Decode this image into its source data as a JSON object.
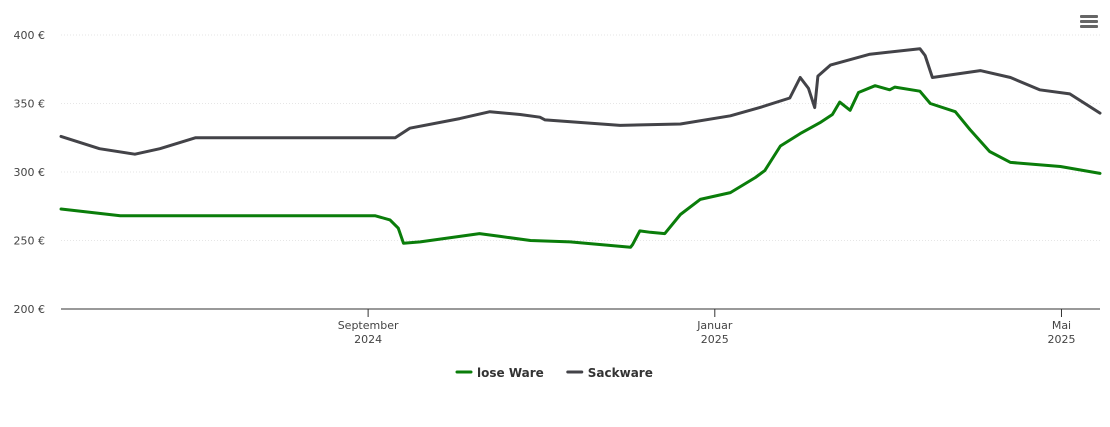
{
  "chart_data": {
    "type": "line",
    "xlim": [
      2024.372,
      2025.37
    ],
    "xticks": [
      {
        "value": 2024.667,
        "label": "September 2024"
      },
      {
        "value": 2025.0,
        "label": "Januar 2025"
      },
      {
        "value": 2025.333,
        "label": "Mai 2025"
      }
    ],
    "ylim": [
      200,
      400
    ],
    "yticks": [
      {
        "value": 200,
        "label": "200 €"
      },
      {
        "value": 250,
        "label": "250 €"
      },
      {
        "value": 300,
        "label": "300 €"
      },
      {
        "value": 350,
        "label": "350 €"
      },
      {
        "value": 400,
        "label": "400 €"
      }
    ],
    "grid": true,
    "legend": "bottom",
    "series": [
      {
        "name": "lose Ware",
        "color": "#0a7d0a",
        "x": [
          2024.372,
          2024.429,
          2024.674,
          2024.688,
          2024.696,
          2024.701,
          2024.717,
          2024.774,
          2024.794,
          2024.823,
          2024.861,
          2024.919,
          2024.921,
          2024.928,
          2024.938,
          2024.952,
          2024.967,
          2024.986,
          2025.015,
          2025.039,
          2025.048,
          2025.063,
          2025.082,
          2025.101,
          2025.113,
          2025.12,
          2025.13,
          2025.138,
          2025.154,
          2025.168,
          2025.173,
          2025.197,
          2025.207,
          2025.231,
          2025.245,
          2025.264,
          2025.284,
          2025.332,
          2025.37
        ],
        "values": [
          273,
          268,
          268,
          265,
          259,
          248,
          249,
          255,
          253,
          250,
          249,
          245,
          247,
          257,
          256,
          255,
          269,
          280,
          285,
          296,
          301,
          319,
          328,
          336,
          342,
          351,
          345,
          358,
          363,
          360,
          362,
          359,
          350,
          344,
          331,
          315,
          307,
          304,
          299
        ]
      },
      {
        "name": "Sackware",
        "color": "#434348",
        "x": [
          2024.372,
          2024.409,
          2024.443,
          2024.467,
          2024.501,
          2024.693,
          2024.707,
          2024.755,
          2024.784,
          2024.813,
          2024.832,
          2024.837,
          2024.909,
          2024.967,
          2025.015,
          2025.043,
          2025.072,
          2025.082,
          2025.09,
          2025.096,
          2025.099,
          2025.111,
          2025.149,
          2025.197,
          2025.202,
          2025.209,
          2025.255,
          2025.284,
          2025.312,
          2025.341,
          2025.37
        ],
        "values": [
          326,
          317,
          313,
          317,
          325,
          325,
          332,
          339,
          344,
          342,
          340,
          338,
          334,
          335,
          341,
          347,
          354,
          369,
          361,
          347,
          370,
          378,
          386,
          390,
          385,
          369,
          374,
          369,
          360,
          357,
          343
        ]
      }
    ]
  }
}
